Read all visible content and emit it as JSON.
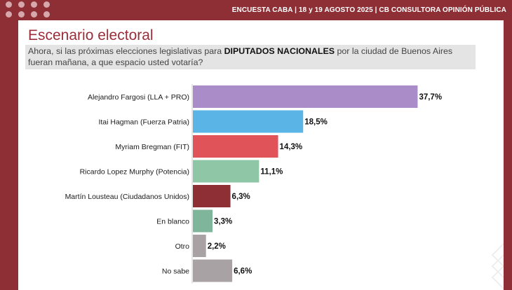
{
  "header": {
    "text": "ENCUESTA CABA  |  18 y 19 AGOSTO 2025 | CB CONSULTORA OPINIÓN PÚBLICA"
  },
  "title": "Escenario electoral",
  "question": {
    "prefix": "Ahora, si las próximas elecciones legislativas para ",
    "emphasis": "DIPUTADOS NACIONALES",
    "suffix": " por la ciudad de Buenos Aires fueran mañana, a que espacio usted votaría?"
  },
  "colors": {
    "brand": "#8e2f35",
    "title": "#9b2d3a"
  },
  "chart_data": {
    "type": "bar",
    "orientation": "horizontal",
    "categories": [
      "Alejandro Fargosi (LLA + PRO)",
      "Itai Hagman (Fuerza Patria)",
      "Myriam Bregman (FIT)",
      "Ricardo Lopez Murphy (Potencia)",
      "Martín Lousteau (Ciudadanos Unidos)",
      "En blanco",
      "Otro",
      "No sabe"
    ],
    "values": [
      37.7,
      18.5,
      14.3,
      11.1,
      6.3,
      3.3,
      2.2,
      6.6
    ],
    "value_labels": [
      "37,7%",
      "18,5%",
      "14,3%",
      "11,1%",
      "6,3%",
      "3,3%",
      "2,2%",
      "6,6%"
    ],
    "colors": [
      "#a98cc8",
      "#5ab4e6",
      "#e05359",
      "#8ec6a6",
      "#8e2f35",
      "#7fb59b",
      "#a8a2a4",
      "#a8a2a4"
    ],
    "grid": false,
    "legend": "none"
  }
}
